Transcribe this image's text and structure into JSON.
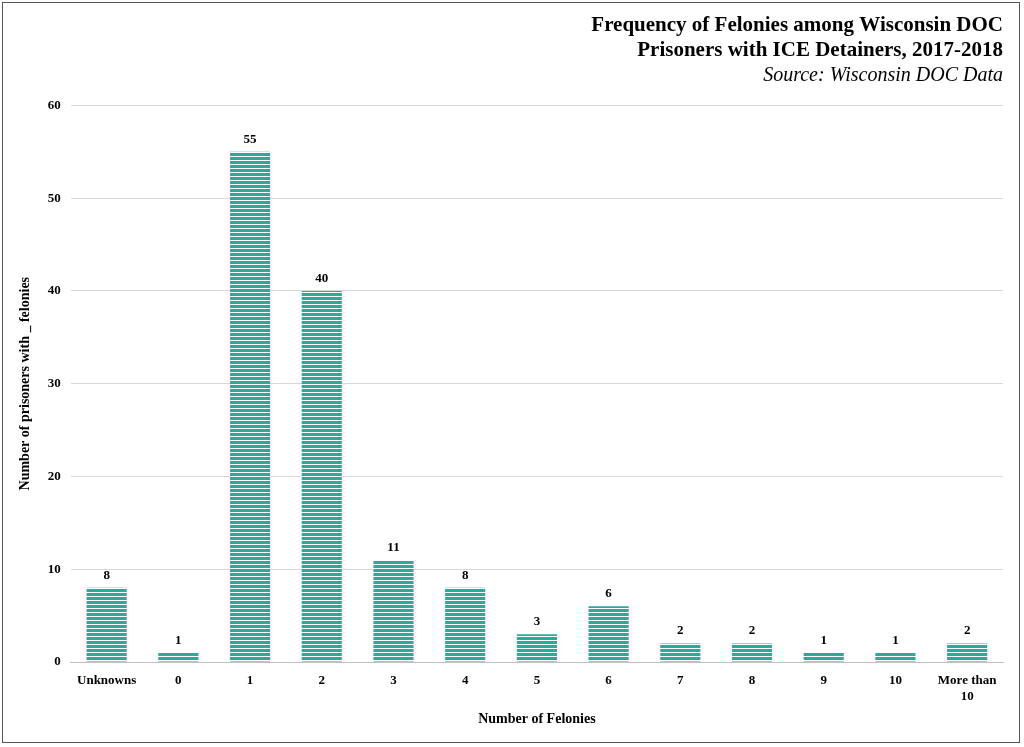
{
  "chart_data": {
    "type": "bar",
    "title": [
      "Frequency of Felonies among Wisconsin DOC",
      "Prisoners with ICE Detainers, 2017-2018"
    ],
    "subtitle": "Source: Wisconsin DOC Data",
    "x_label": "Number of Felonies",
    "y_label": "Number of prisoners with _ felonies",
    "categories": [
      "Unknowns",
      "0",
      "1",
      "2",
      "3",
      "4",
      "5",
      "6",
      "7",
      "8",
      "9",
      "10",
      "More than 10"
    ],
    "values": [
      8,
      1,
      55,
      40,
      11,
      8,
      3,
      6,
      2,
      2,
      1,
      1,
      2
    ],
    "color": "#2ba99b",
    "ylim": [
      0,
      60
    ],
    "yticks": [
      0,
      10,
      20,
      30,
      40,
      50,
      60
    ],
    "grid": true,
    "data_labels": true
  }
}
